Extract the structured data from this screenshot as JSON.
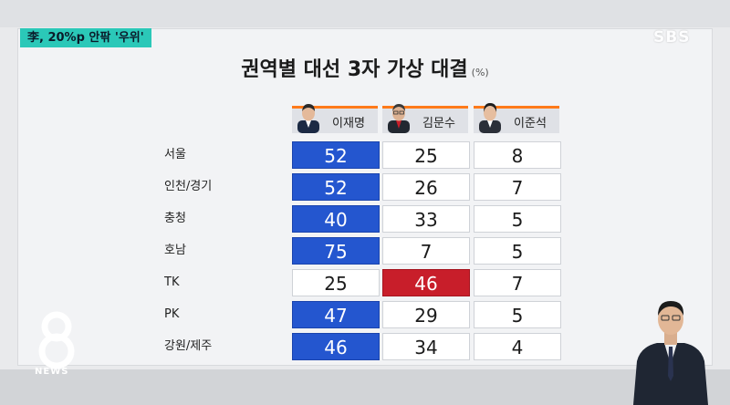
{
  "headline": "李, 20%p 안팎 '우위'",
  "broadcaster": "SBS",
  "logo_text": "NEWS",
  "logo_icon": "eight-news-logo",
  "colors": {
    "accent_teal": "#2bc8b8",
    "lead_blue": "#2456cf",
    "lead_red": "#c81e2a",
    "header_bar": "#ff7a1a"
  },
  "chart_data": {
    "type": "table",
    "title": "권역별 대선 3자 가상 대결",
    "unit": "(%)",
    "columns": [
      "이재명",
      "김문수",
      "이준석"
    ],
    "rows": [
      {
        "region": "서울",
        "values": [
          52,
          25,
          8
        ],
        "leader": 0
      },
      {
        "region": "인천/경기",
        "values": [
          52,
          26,
          7
        ],
        "leader": 0
      },
      {
        "region": "충청",
        "values": [
          40,
          33,
          5
        ],
        "leader": 0
      },
      {
        "region": "호남",
        "values": [
          75,
          7,
          5
        ],
        "leader": 0
      },
      {
        "region": "TK",
        "values": [
          25,
          46,
          7
        ],
        "leader": 1
      },
      {
        "region": "PK",
        "values": [
          47,
          29,
          5
        ],
        "leader": 0
      },
      {
        "region": "강원/제주",
        "values": [
          46,
          34,
          4
        ],
        "leader": 0
      }
    ]
  }
}
